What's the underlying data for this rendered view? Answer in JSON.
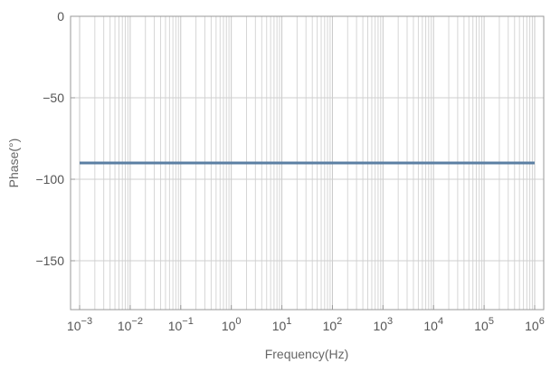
{
  "chart_data": {
    "type": "line",
    "title": "",
    "xlabel": "Frequency(Hz)",
    "ylabel": "Phase(°)",
    "x_scale": "log",
    "xlim": [
      0.001,
      1000000
    ],
    "ylim": [
      -180,
      0
    ],
    "x_ticks": [
      {
        "base": "10",
        "exp": "−3"
      },
      {
        "base": "10",
        "exp": "−2"
      },
      {
        "base": "10",
        "exp": "−1"
      },
      {
        "base": "10",
        "exp": "0"
      },
      {
        "base": "10",
        "exp": "1"
      },
      {
        "base": "10",
        "exp": "2"
      },
      {
        "base": "10",
        "exp": "3"
      },
      {
        "base": "10",
        "exp": "4"
      },
      {
        "base": "10",
        "exp": "5"
      },
      {
        "base": "10",
        "exp": "6"
      }
    ],
    "y_ticks": [
      {
        "value": 0,
        "label": "0"
      },
      {
        "value": -50,
        "label": "−50"
      },
      {
        "value": -100,
        "label": "−100"
      },
      {
        "value": -150,
        "label": "−150"
      }
    ],
    "grid": true,
    "series": [
      {
        "color": "#5b7fa3",
        "points": [
          [
            0.001,
            -90
          ],
          [
            1000000,
            -90
          ]
        ]
      }
    ]
  }
}
